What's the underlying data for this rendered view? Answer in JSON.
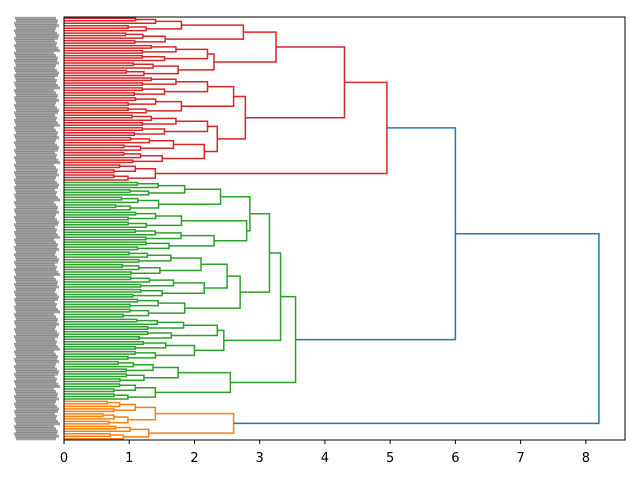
{
  "chart_data": {
    "type": "dendrogram",
    "orientation": "left",
    "xlim": [
      0,
      8.6
    ],
    "x_ticks": [
      "0",
      "1",
      "2",
      "3",
      "4",
      "5",
      "6",
      "7",
      "8"
    ],
    "grid": false,
    "leaf_labels_legible": false,
    "colors": {
      "above_threshold": "#1f77b4",
      "cluster_red": "#d62728",
      "cluster_green": "#2ca02c",
      "cluster_orange": "#ff7f0e"
    },
    "tree": {
      "h": 8.2,
      "c": [
        {
          "h": 6.0,
          "c": [
            {
              "h": 4.95,
              "color": "cluster_red",
              "c": [
                {
                  "h": 4.3,
                  "c": [
                    {
                      "h": 3.25,
                      "c": [
                        {
                          "h": 2.75,
                          "c": [
                            {
                              "h": 1.8,
                              "n": 6
                            },
                            {
                              "h": 1.55,
                              "n": 5
                            }
                          ]
                        },
                        {
                          "h": 2.3,
                          "c": [
                            {
                              "h": 2.2,
                              "n": 7
                            },
                            {
                              "h": 1.75,
                              "n": 6
                            }
                          ]
                        }
                      ]
                    },
                    {
                      "h": 2.78,
                      "c": [
                        {
                          "h": 2.6,
                          "c": [
                            {
                              "h": 2.2,
                              "n": 8
                            },
                            {
                              "h": 1.8,
                              "n": 7
                            }
                          ]
                        },
                        {
                          "h": 2.35,
                          "c": [
                            {
                              "h": 2.2,
                              "n": 9
                            },
                            {
                              "h": 2.15,
                              "n": 11
                            }
                          ]
                        }
                      ]
                    }
                  ]
                },
                {
                  "h": 1.4,
                  "n": 7
                }
              ]
            },
            {
              "h": 3.55,
              "color": "cluster_green",
              "c": [
                {
                  "h": 3.32,
                  "c": [
                    {
                      "h": 3.15,
                      "c": [
                        {
                          "h": 2.85,
                          "c": [
                            {
                              "h": 2.4,
                              "c": [
                                {
                                  "h": 1.85,
                                  "n": 6
                                },
                                {
                                  "h": 1.45,
                                  "n": 6
                                }
                              ]
                            },
                            {
                              "h": 2.8,
                              "c": [
                                {
                                  "h": 1.8,
                                  "n": 7
                                },
                                {
                                  "h": 2.3,
                                  "n": 9
                                }
                              ]
                            }
                          ]
                        },
                        {
                          "h": 2.7,
                          "c": [
                            {
                              "h": 2.5,
                              "c": [
                                {
                                  "h": 2.1,
                                  "n": 10
                                },
                                {
                                  "h": 2.15,
                                  "n": 9
                                }
                              ]
                            },
                            {
                              "h": 1.85,
                              "n": 8
                            }
                          ]
                        }
                      ]
                    },
                    {
                      "h": 2.45,
                      "c": [
                        {
                          "h": 2.35,
                          "n": 9
                        },
                        {
                          "h": 2.0,
                          "n": 8
                        }
                      ]
                    }
                  ]
                },
                {
                  "h": 2.55,
                  "c": [
                    {
                      "h": 1.75,
                      "n": 9
                    },
                    {
                      "h": 1.4,
                      "n": 7
                    }
                  ]
                }
              ]
            }
          ]
        },
        {
          "h": 2.6,
          "color": "cluster_orange",
          "c": [
            {
              "h": 1.4,
              "n": 10
            },
            {
              "h": 1.3,
              "n": 6
            }
          ]
        }
      ]
    }
  }
}
